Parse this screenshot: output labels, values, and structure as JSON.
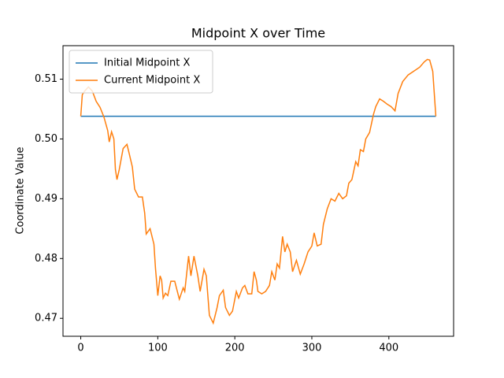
{
  "chart_data": {
    "type": "line",
    "title": "Midpoint X over Time",
    "ylabel": "Coordinate Value",
    "legend": "upper left",
    "grid": false,
    "xlim": [
      -23.05,
      484.05
    ],
    "xticks": [
      0,
      100,
      200,
      300,
      400
    ],
    "ylim": [
      0.467,
      0.5156
    ],
    "yticks": [
      0.47,
      0.48,
      0.49,
      {
        "value": 0.5,
        "label": "0.50"
      },
      0.51
    ],
    "series": [
      {
        "name": "Initial Midpoint X",
        "color": "#1f77b4",
        "x": [
          0,
          461
        ],
        "values": [
          0.5038,
          0.5038
        ]
      },
      {
        "name": "Current Midpoint X",
        "color": "#ff7f0e",
        "x": [
          0,
          2,
          5,
          10,
          15,
          20,
          25,
          30,
          35,
          37,
          40,
          43,
          45,
          47,
          50,
          55,
          60,
          63,
          67,
          70,
          75,
          80,
          83,
          85,
          90,
          95,
          97,
          100,
          103,
          105,
          107,
          110,
          113,
          117,
          122,
          128,
          133,
          135,
          140,
          143,
          147,
          152,
          155,
          160,
          163,
          167,
          172,
          177,
          180,
          185,
          188,
          193,
          197,
          202,
          205,
          210,
          213,
          217,
          222,
          225,
          228,
          230,
          235,
          240,
          245,
          248,
          252,
          255,
          258,
          262,
          265,
          268,
          272,
          275,
          280,
          285,
          290,
          295,
          300,
          303,
          307,
          312,
          315,
          320,
          325,
          330,
          335,
          340,
          345,
          348,
          352,
          357,
          360,
          363,
          367,
          370,
          375,
          380,
          383,
          388,
          393,
          398,
          403,
          408,
          412,
          418,
          425,
          432,
          440,
          446,
          450,
          453,
          457,
          461
        ],
        "values": [
          0.5038,
          0.5074,
          0.508,
          0.5087,
          0.508,
          0.5063,
          0.5053,
          0.5037,
          0.5014,
          0.4995,
          0.5012,
          0.5,
          0.4949,
          0.4932,
          0.4949,
          0.4984,
          0.4991,
          0.4975,
          0.4953,
          0.4916,
          0.4903,
          0.4903,
          0.4876,
          0.4841,
          0.485,
          0.4824,
          0.4784,
          0.4738,
          0.4771,
          0.4764,
          0.4734,
          0.4742,
          0.4738,
          0.4762,
          0.4762,
          0.4732,
          0.4751,
          0.4745,
          0.4804,
          0.4771,
          0.4804,
          0.4771,
          0.4745,
          0.4782,
          0.4771,
          0.4705,
          0.4692,
          0.4718,
          0.4738,
          0.4747,
          0.4718,
          0.4705,
          0.4712,
          0.4745,
          0.4734,
          0.4751,
          0.4755,
          0.4741,
          0.4741,
          0.4778,
          0.4764,
          0.4745,
          0.4741,
          0.4745,
          0.4755,
          0.4778,
          0.4764,
          0.4791,
          0.4784,
          0.4837,
          0.4811,
          0.4824,
          0.4811,
          0.4778,
          0.4797,
          0.4774,
          0.4791,
          0.4811,
          0.4821,
          0.4843,
          0.4821,
          0.4824,
          0.4857,
          0.4883,
          0.49,
          0.4896,
          0.4909,
          0.49,
          0.4905,
          0.4926,
          0.4932,
          0.4962,
          0.4955,
          0.4982,
          0.4979,
          0.5,
          0.5011,
          0.5041,
          0.5054,
          0.5067,
          0.5063,
          0.5058,
          0.5054,
          0.5047,
          0.5076,
          0.5096,
          0.5107,
          0.5113,
          0.512,
          0.5129,
          0.5133,
          0.5132,
          0.5113,
          0.5038
        ]
      }
    ]
  }
}
